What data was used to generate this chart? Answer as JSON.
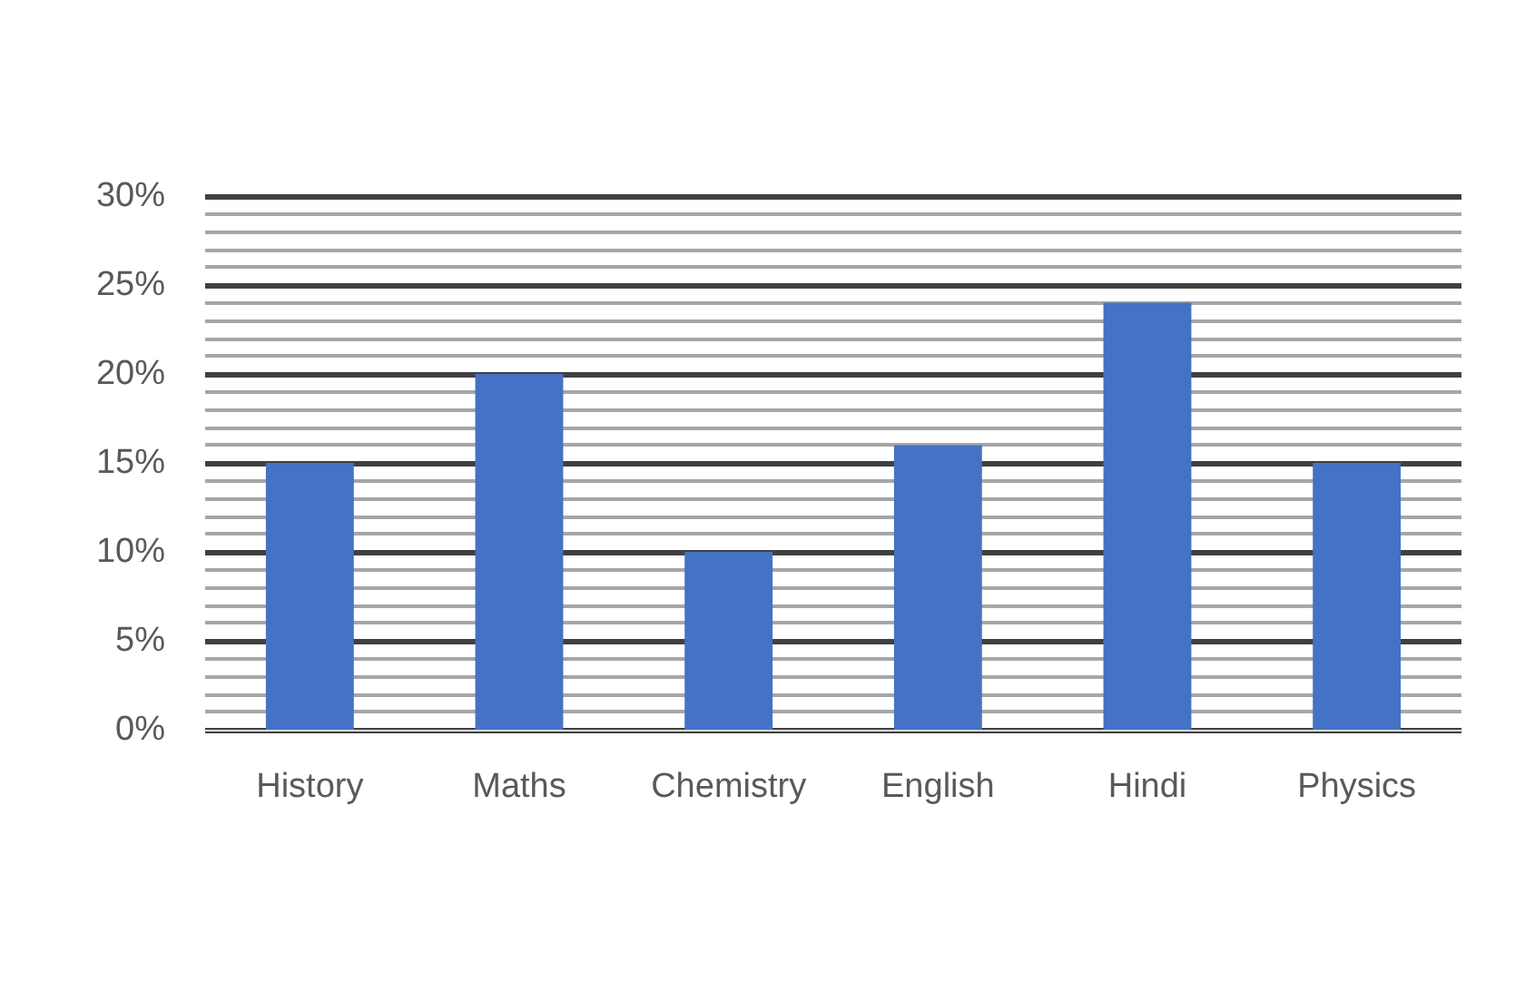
{
  "chart_data": {
    "type": "bar",
    "categories": [
      "History",
      "Maths",
      "Chemistry",
      "English",
      "Hindi",
      "Physics"
    ],
    "values": [
      15,
      20,
      10,
      16,
      24,
      15
    ],
    "color": "#4472c4",
    "ylim": [
      0,
      30
    ],
    "yticks": [
      {
        "value": 0,
        "label": "0%"
      },
      {
        "value": 5,
        "label": "5%"
      },
      {
        "value": 10,
        "label": "10%"
      },
      {
        "value": 15,
        "label": "15%"
      },
      {
        "value": 20,
        "label": "20%"
      },
      {
        "value": 25,
        "label": "25%"
      },
      {
        "value": 30,
        "label": "30%"
      }
    ],
    "grid": "y"
  }
}
